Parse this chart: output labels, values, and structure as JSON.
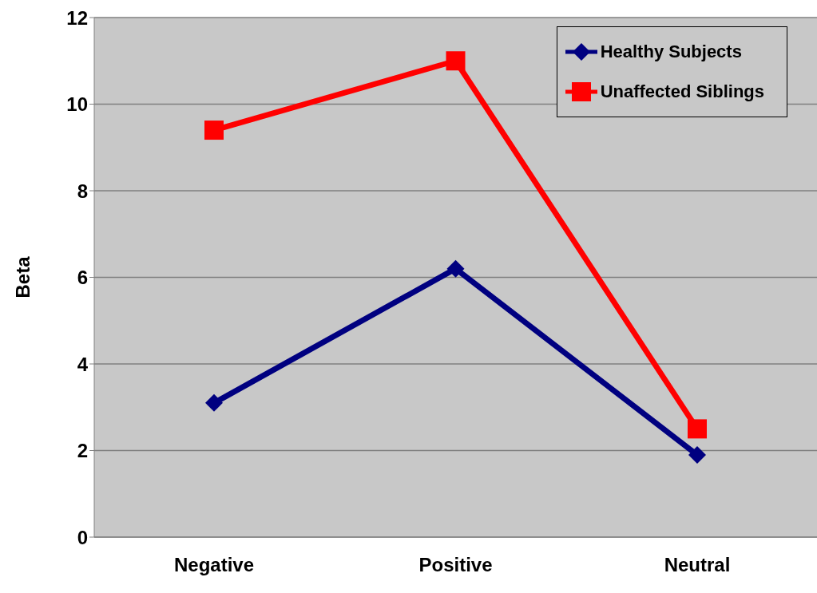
{
  "chart_data": {
    "type": "line",
    "ylabel": "Beta",
    "categories": [
      "Negative",
      "Positive",
      "Neutral"
    ],
    "series": [
      {
        "name": "Healthy Subjects",
        "color": "#000080",
        "marker": "diamond",
        "values": [
          3.1,
          6.2,
          1.9
        ]
      },
      {
        "name": "Unaffected Siblings",
        "color": "#ff0000",
        "marker": "square",
        "values": [
          9.4,
          11.0,
          2.5
        ]
      }
    ],
    "ylim": [
      0,
      12
    ],
    "yticks": [
      0,
      2,
      4,
      6,
      8,
      10,
      12
    ],
    "grid": "y",
    "legend": "top right",
    "line_style": "solid"
  }
}
